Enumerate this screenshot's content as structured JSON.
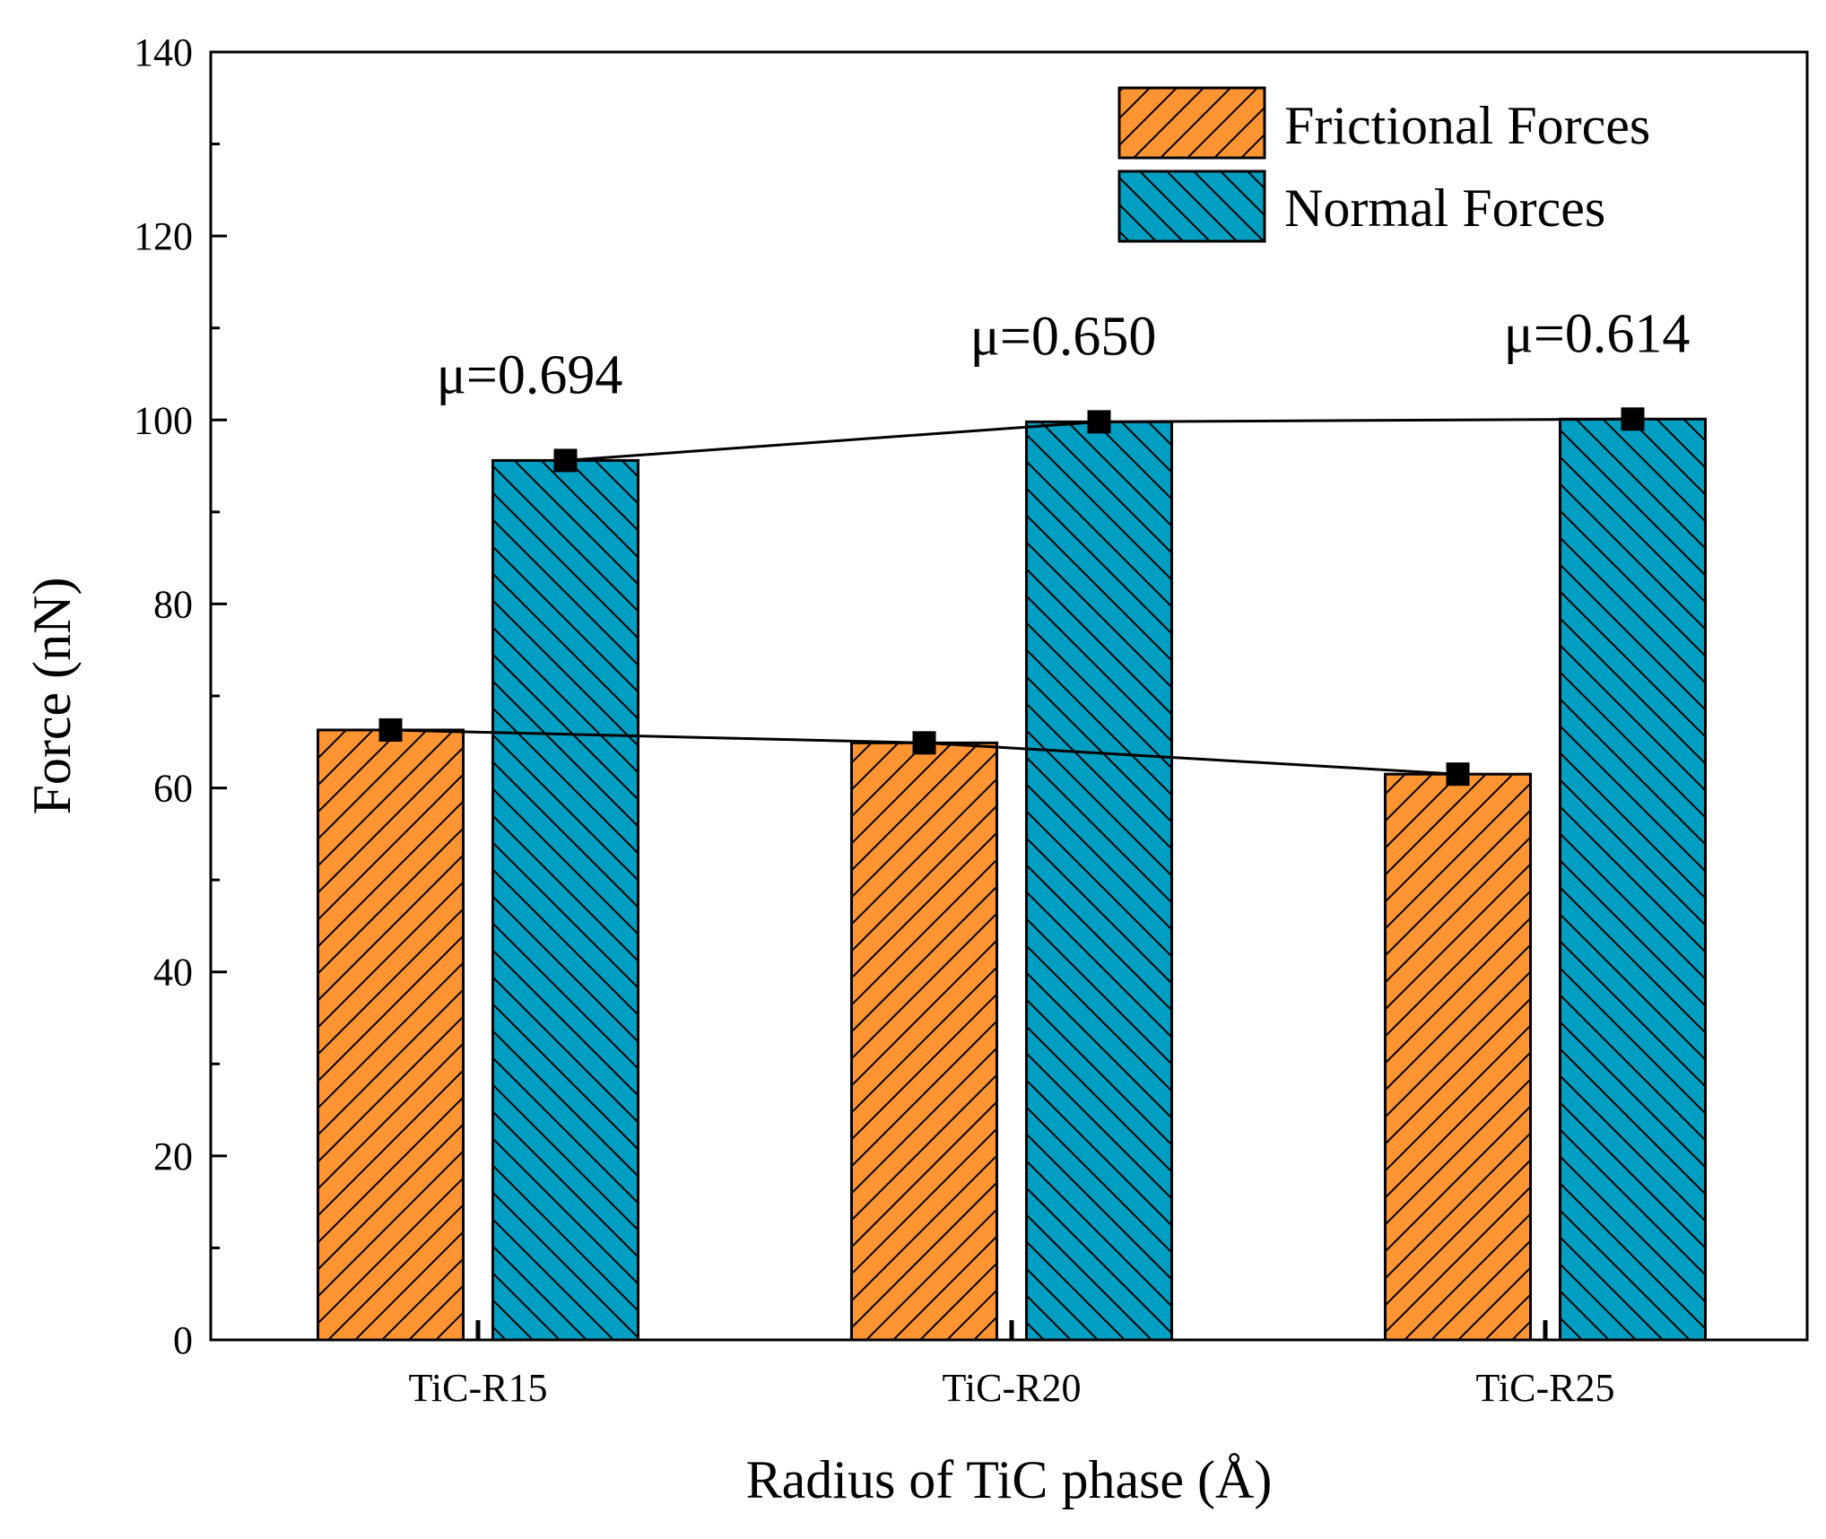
{
  "chart_data": {
    "type": "bar",
    "xlabel": "Radius of TiC phase (Å)",
    "ylabel": "Force (nN)",
    "ylim": [
      0,
      140
    ],
    "yticks": [
      0,
      20,
      40,
      60,
      80,
      100,
      120,
      140
    ],
    "categories": [
      "TiC-R15",
      "TiC-R20",
      "TiC-R25"
    ],
    "series": [
      {
        "name": "Frictional Forces",
        "values": [
          66.3,
          64.9,
          61.5
        ],
        "color": "#ff9433",
        "hatch": "forward-diagonal"
      },
      {
        "name": "Normal Forces",
        "values": [
          95.6,
          99.8,
          100.1
        ],
        "color": "#009fc1",
        "hatch": "backward-diagonal"
      }
    ],
    "annotations": [
      "μ=0.694",
      "μ=0.650",
      "μ=0.614"
    ],
    "grid": false,
    "legend_position": "top-right",
    "line_markers": "square"
  }
}
